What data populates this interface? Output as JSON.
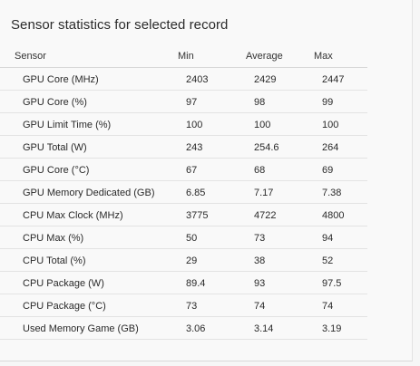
{
  "panel": {
    "title": "Sensor statistics for selected record"
  },
  "table": {
    "headers": {
      "sensor": "Sensor",
      "min": "Min",
      "average": "Average",
      "max": "Max"
    },
    "rows": [
      {
        "sensor": "GPU Core (MHz)",
        "min": "2403",
        "average": "2429",
        "max": "2447"
      },
      {
        "sensor": "GPU Core (%)",
        "min": "97",
        "average": "98",
        "max": "99"
      },
      {
        "sensor": "GPU Limit Time (%)",
        "min": "100",
        "average": "100",
        "max": "100"
      },
      {
        "sensor": "GPU Total (W)",
        "min": "243",
        "average": "254.6",
        "max": "264"
      },
      {
        "sensor": "GPU Core (°C)",
        "min": "67",
        "average": "68",
        "max": "69"
      },
      {
        "sensor": "GPU Memory Dedicated (GB)",
        "min": "6.85",
        "average": "7.17",
        "max": "7.38"
      },
      {
        "sensor": "CPU Max Clock (MHz)",
        "min": "3775",
        "average": "4722",
        "max": "4800"
      },
      {
        "sensor": "CPU Max (%)",
        "min": "50",
        "average": "73",
        "max": "94"
      },
      {
        "sensor": "CPU Total (%)",
        "min": "29",
        "average": "38",
        "max": "52"
      },
      {
        "sensor": "CPU Package (W)",
        "min": "89.4",
        "average": "93",
        "max": "97.5"
      },
      {
        "sensor": "CPU Package (°C)",
        "min": "73",
        "average": "74",
        "max": "74"
      },
      {
        "sensor": "Used Memory Game (GB)",
        "min": "3.06",
        "average": "3.14",
        "max": "3.19"
      }
    ]
  }
}
